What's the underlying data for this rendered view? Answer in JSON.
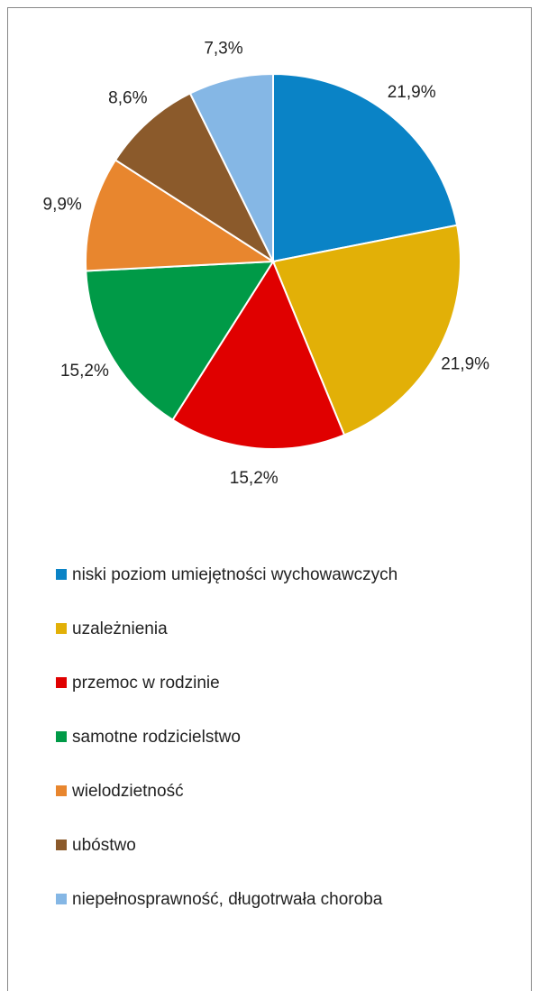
{
  "chart_data": {
    "type": "pie",
    "categories": [
      "niski poziom umiejętności wychowawczych",
      "uzależnienia",
      "przemoc w rodzinie",
      "samotne rodzicielstwo",
      "wielodzietność",
      "ubóstwo",
      "niepełnosprawność, długotrwała choroba"
    ],
    "values": [
      21.9,
      21.9,
      15.2,
      15.2,
      9.9,
      8.6,
      7.3
    ],
    "value_labels": [
      "21,9%",
      "21,9%",
      "15,2%",
      "15,2%",
      "9,9%",
      "8,6%",
      "7,3%"
    ],
    "colors": [
      "#0a83c6",
      "#e2b007",
      "#e00000",
      "#009a47",
      "#e8862e",
      "#8b5a2b",
      "#85b7e5"
    ],
    "legend": "bottom"
  }
}
